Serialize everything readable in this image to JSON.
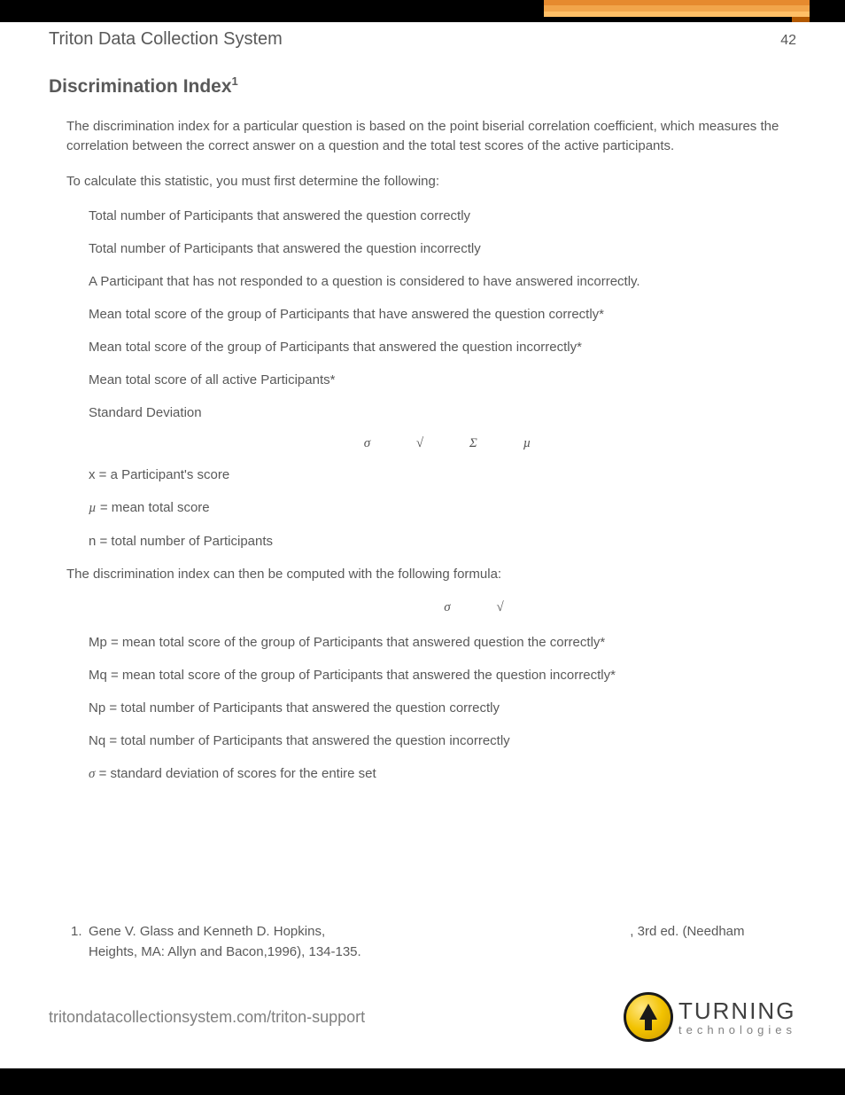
{
  "top_accent_colors": [
    "#e68a2e",
    "#f2a54a",
    "#ffbf66",
    "#b35900"
  ],
  "header": {
    "system_title": "Triton Data Collection System",
    "page_number": "42"
  },
  "section": {
    "title": "Discrimination Index",
    "footnote_ref": "1"
  },
  "intro_p1": "The discrimination index for a particular question is based on the point biserial correlation coefficient, which measures the correlation between the correct answer on a question and the total test scores of the active participants.",
  "intro_p2": "To calculate this statistic, you must first determine the following:",
  "calc_items": [
    "Total number of Participants that answered the question correctly",
    "Total number of Participants that answered the question incorrectly",
    "A Participant that has not responded to a question is considered to have answered incorrectly.",
    "Mean total score of the group of Participants that have answered the question correctly*",
    "Mean total score of the group of Participants that answered the question incorrectly*",
    "Mean total score of all active Participants*",
    "Standard Deviation"
  ],
  "formula1_symbols": "σ  √  Σ     µ",
  "var_defs1": [
    {
      "pre": "x = a Participant's score",
      "greek": ""
    },
    {
      "pre": "",
      "greek": "µ",
      "post": "  = mean total score"
    },
    {
      "pre": "n = total number of Participants",
      "greek": ""
    }
  ],
  "intro_p3": "The discrimination index can then be computed with the following formula:",
  "formula2_symbols": "σ   √",
  "var_defs2": [
    "Mp = mean total score of the group of Participants that answered question the correctly*",
    "Mq = mean total score of the group of Participants that answered the question incorrectly*",
    "Np = total number of Participants that answered the question correctly",
    "Nq = total number of Participants that answered the question incorrectly"
  ],
  "sigma_def": {
    "greek": "σ",
    "post": "  = standard deviation of scores for the entire set"
  },
  "footnote": {
    "num": "1.",
    "text_a": "Gene V. Glass and Kenneth D. Hopkins, ",
    "text_b": ", 3rd ed. (Needham Heights, MA: Allyn and Bacon,1996), 134-135."
  },
  "footer": {
    "url": "tritondatacollectionsystem.com/triton-support",
    "logo_main": "TURNING",
    "logo_sub": "technologies"
  }
}
